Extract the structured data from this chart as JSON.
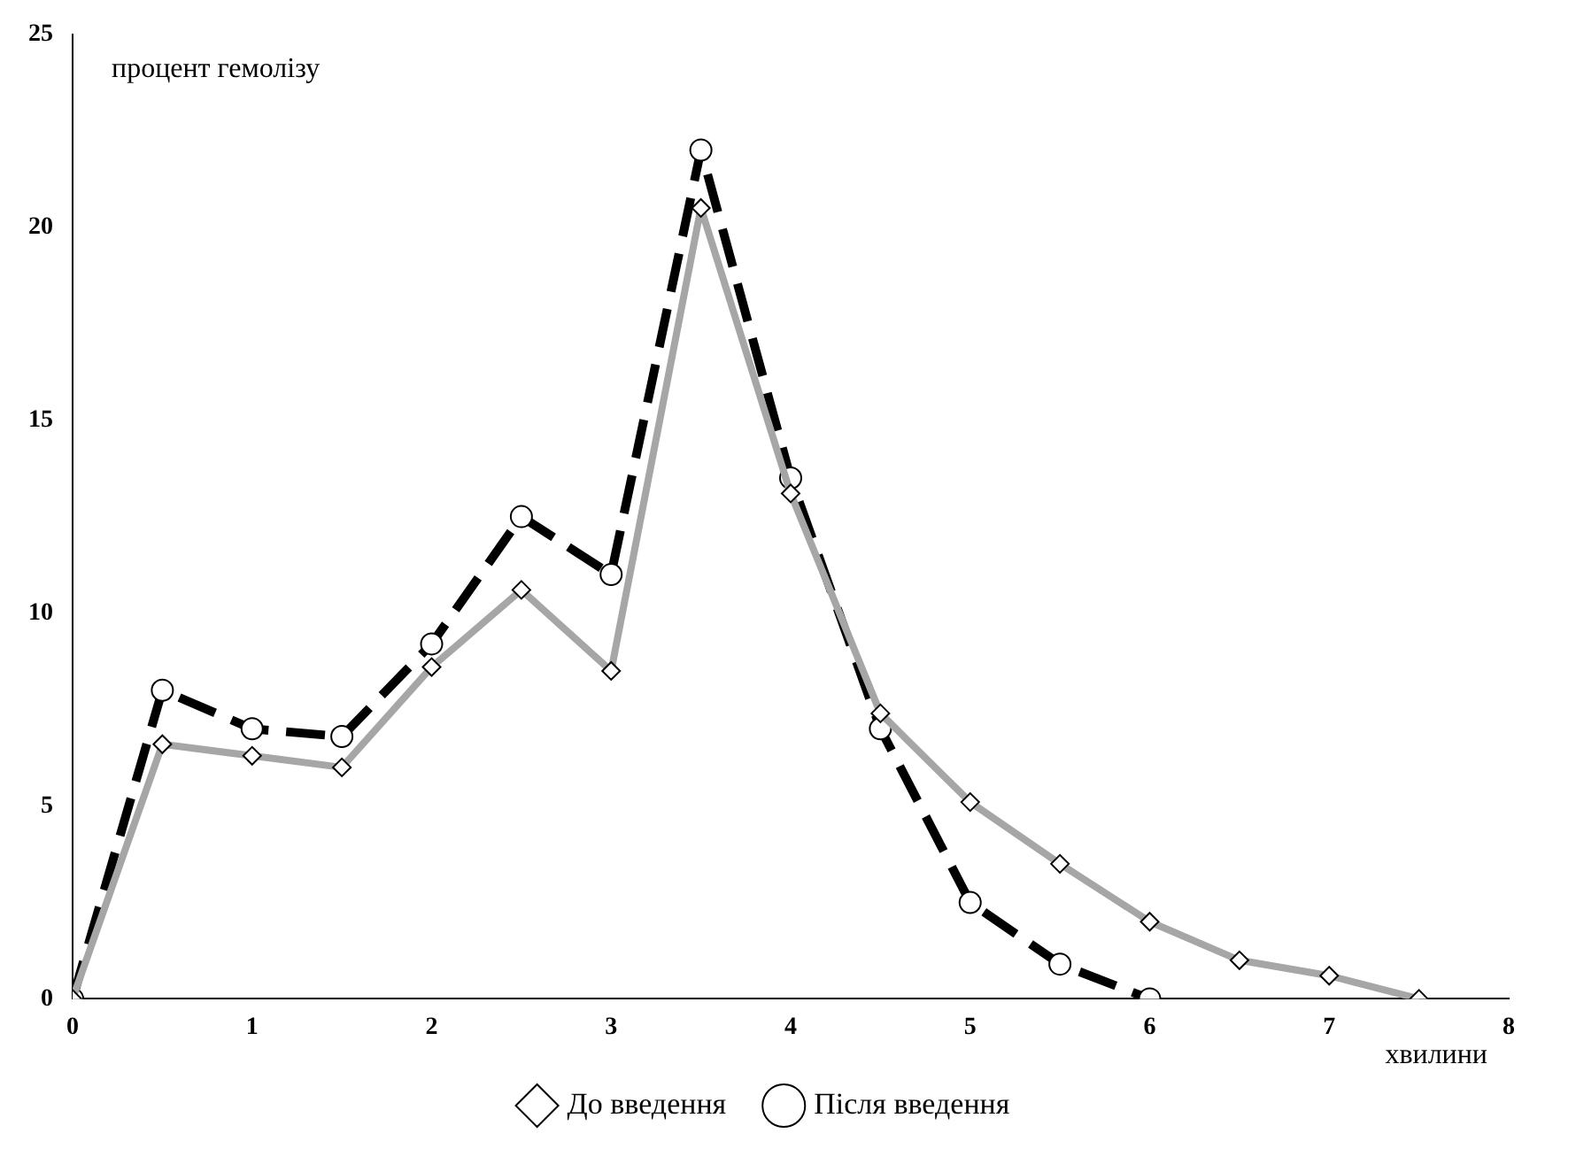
{
  "chart_data": {
    "type": "line",
    "xlabel": "хвилини",
    "ylabel": "процент гемолізу",
    "xlim": [
      0,
      8
    ],
    "xticks": [
      0,
      1,
      2,
      3,
      4,
      5,
      6,
      7,
      8
    ],
    "ylim": [
      0,
      25
    ],
    "yticks": [
      0,
      5,
      10,
      15,
      20,
      25
    ],
    "grid": false,
    "legend": "bottom",
    "series": [
      {
        "name": "До введення",
        "color": "#a6a6a6",
        "marker": "diamond",
        "line_style": "solid",
        "x": [
          0,
          0.5,
          1,
          1.5,
          2,
          2.5,
          3,
          3.5,
          4,
          4.5,
          5,
          5.5,
          6,
          6.5,
          7,
          7.5
        ],
        "values": [
          0,
          6.6,
          6.3,
          6.0,
          8.6,
          10.6,
          8.5,
          20.5,
          13.1,
          7.4,
          5.1,
          3.5,
          2.0,
          1.0,
          0.6,
          0
        ]
      },
      {
        "name": "Після введення",
        "color": "#000000",
        "marker": "circle",
        "line_style": "dashed",
        "x": [
          0,
          0.5,
          1,
          1.5,
          2,
          2.5,
          3,
          3.5,
          4,
          4.5,
          5,
          5.5,
          6
        ],
        "values": [
          0,
          8.0,
          7.0,
          6.8,
          9.2,
          12.5,
          11.0,
          22.0,
          13.5,
          7.0,
          2.5,
          0.9,
          0
        ]
      }
    ]
  }
}
